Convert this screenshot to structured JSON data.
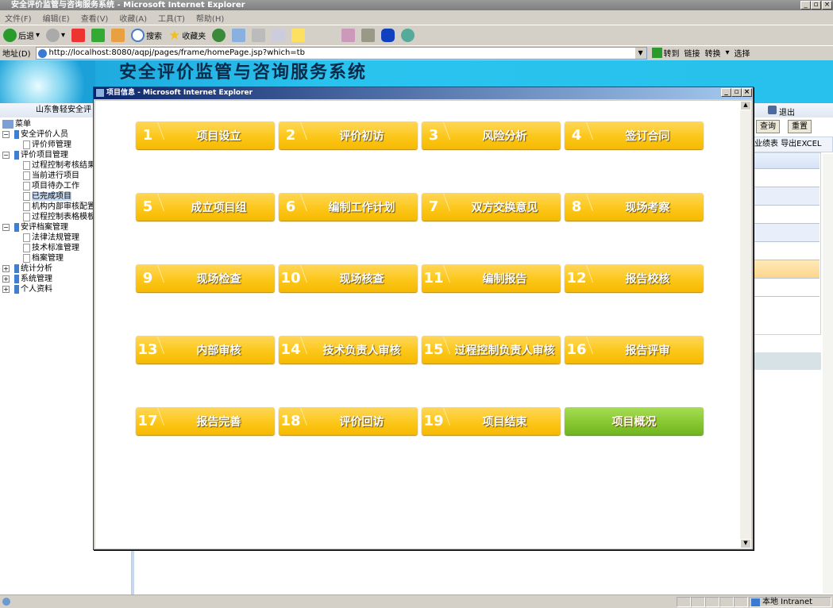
{
  "window": {
    "title": "安全评价监管与咨询服务系统 - Microsoft Internet Explorer"
  },
  "menu": [
    "文件(F)",
    "编辑(E)",
    "查看(V)",
    "收藏(A)",
    "工具(T)",
    "帮助(H)"
  ],
  "toolbar": {
    "back": "后退",
    "search": "搜索",
    "favorites": "收藏夹"
  },
  "address": {
    "label": "地址(D)",
    "url": "http://localhost:8080/aqpj/pages/frame/homePage.jsp?which=tb",
    "go": "转到",
    "links": "链接",
    "convert": "转换",
    "select": "选择"
  },
  "site": {
    "title": "安全评价监管与咨询服务系统",
    "org": "山东鲁轻安全评",
    "logout": "退出",
    "query": "查询",
    "reset": "重置",
    "tab1": "业绩表",
    "tab2": "导出EXCEL"
  },
  "tree": {
    "root": "菜单",
    "items": [
      {
        "label": "安全评价人员",
        "level": 0,
        "type": "folder-open"
      },
      {
        "label": "评价师管理",
        "level": 1,
        "type": "doc"
      },
      {
        "label": "评价项目管理",
        "level": 0,
        "type": "folder-open"
      },
      {
        "label": "过程控制考核结果",
        "level": 1,
        "type": "doc"
      },
      {
        "label": "当前进行项目",
        "level": 1,
        "type": "doc"
      },
      {
        "label": "项目待办工作",
        "level": 1,
        "type": "doc"
      },
      {
        "label": "已完成项目",
        "level": 1,
        "type": "doc",
        "selected": true
      },
      {
        "label": "机构内部审核配置",
        "level": 1,
        "type": "doc"
      },
      {
        "label": "过程控制表格模板",
        "level": 1,
        "type": "doc"
      },
      {
        "label": "安评档案管理",
        "level": 0,
        "type": "folder-open"
      },
      {
        "label": "法律法规管理",
        "level": 1,
        "type": "doc"
      },
      {
        "label": "技术标准管理",
        "level": 1,
        "type": "doc"
      },
      {
        "label": "档案管理",
        "level": 1,
        "type": "doc"
      },
      {
        "label": "统计分析",
        "level": 0,
        "type": "folder-closed"
      },
      {
        "label": "系统管理",
        "level": 0,
        "type": "folder-closed"
      },
      {
        "label": "个人资料",
        "level": 0,
        "type": "folder-closed"
      }
    ]
  },
  "popup": {
    "title": "项目信息 - Microsoft Internet Explorer",
    "steps": [
      {
        "num": "1",
        "label": "项目设立"
      },
      {
        "num": "2",
        "label": "评价初访"
      },
      {
        "num": "3",
        "label": "风险分析"
      },
      {
        "num": "4",
        "label": "签订合同"
      },
      {
        "num": "5",
        "label": "成立项目组"
      },
      {
        "num": "6",
        "label": "编制工作计划"
      },
      {
        "num": "7",
        "label": "双方交换意见"
      },
      {
        "num": "8",
        "label": "现场考察"
      },
      {
        "num": "9",
        "label": "现场检查"
      },
      {
        "num": "10",
        "label": "现场核查"
      },
      {
        "num": "11",
        "label": "编制报告"
      },
      {
        "num": "12",
        "label": "报告校核"
      },
      {
        "num": "13",
        "label": "内部审核"
      },
      {
        "num": "14",
        "label": "技术负责人审核"
      },
      {
        "num": "15",
        "label": "过程控制负责人审核"
      },
      {
        "num": "16",
        "label": "报告评审"
      },
      {
        "num": "17",
        "label": "报告完善"
      },
      {
        "num": "18",
        "label": "评价回访"
      },
      {
        "num": "19",
        "label": "项目结束"
      }
    ],
    "overview": "项目概况"
  },
  "status": {
    "zone": "本地 Intranet"
  },
  "colors": {
    "step": "#fcc71a",
    "overview": "#88c832",
    "banner": "#28c0ec"
  }
}
